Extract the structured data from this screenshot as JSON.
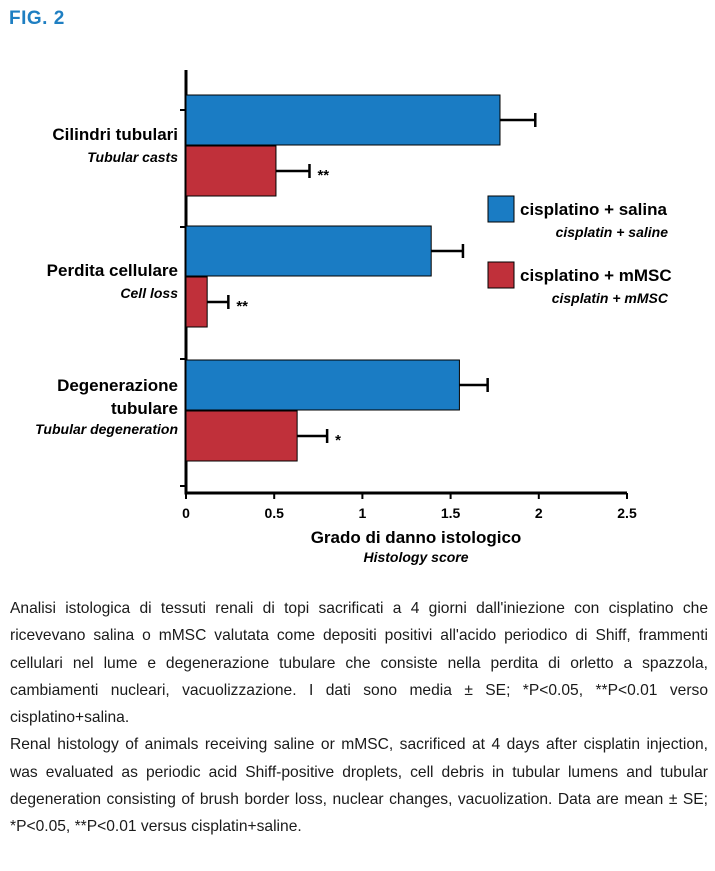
{
  "figure_label": "FIG. 2",
  "colors": {
    "saline": "#1a7cc4",
    "mmsc": "#c0303a",
    "figure_label": "#1f7fc2"
  },
  "chart_data": {
    "type": "bar",
    "orientation": "horizontal",
    "categories": [
      {
        "lines": [
          "Cilindri tubulari"
        ],
        "sub": "Tubular casts"
      },
      {
        "lines": [
          "Perdita cellulare"
        ],
        "sub": "Cell loss"
      },
      {
        "lines": [
          "Degenerazione",
          "tubulare"
        ],
        "sub": "Tubular degeneration"
      }
    ],
    "series": [
      {
        "name": "cisplatino + salina",
        "name_sub": "cisplatin + saline",
        "color": "#1a7cc4",
        "values": [
          1.78,
          1.39,
          1.55
        ],
        "errors": [
          0.2,
          0.18,
          0.16
        ],
        "significance": [
          "",
          "",
          ""
        ]
      },
      {
        "name": "cisplatino + mMSC",
        "name_sub": "cisplatin + mMSC",
        "color": "#c0303a",
        "values": [
          0.51,
          0.12,
          0.63
        ],
        "errors": [
          0.19,
          0.12,
          0.17
        ],
        "significance": [
          "**",
          "**",
          "*"
        ]
      }
    ],
    "xlim": [
      0,
      2.5
    ],
    "xticks": [
      "0",
      "0.5",
      "1",
      "1.5",
      "2",
      "2.5"
    ],
    "xlabel": "Grado di danno istologico",
    "xlabel_sub": "Histology score",
    "grid": false,
    "legend_position": "right"
  },
  "caption": {
    "italian": "Analisi istologica di tessuti renali di topi sacrificati a 4 giorni dall'iniezione con cisplatino che ricevevano salina o mMSC valutata come depositi positivi all'acido periodico di Shiff, frammenti cellulari nel lume e degenerazione tubulare che consiste nella perdita di orletto a spazzola, cambiamenti nucleari, vacuolizzazione. I dati sono media ± SE; *P<0.05, **P<0.01 verso cisplatino+salina.",
    "english": "Renal histology of animals receiving saline or mMSC, sacrificed at 4 days after cisplatin injection, was evaluated as periodic acid Shiff-positive droplets, cell debris in tubular lumens and tubular degeneration consisting of brush border loss, nuclear changes, vacuolization. Data are mean ± SE; *P<0.05, **P<0.01 versus cisplatin+saline."
  }
}
